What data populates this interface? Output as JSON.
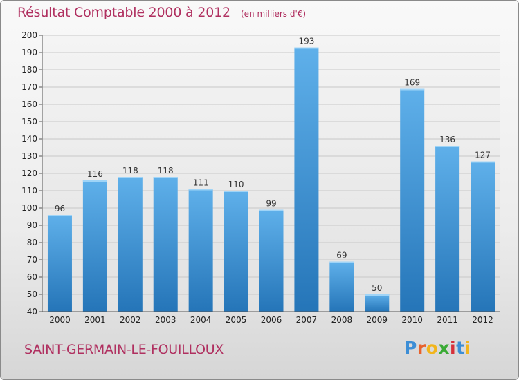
{
  "header": {
    "title": "Résultat Comptable 2000 à 2012",
    "subtitle": "(en milliers d'€)"
  },
  "footer": {
    "place_name": "SAINT-GERMAIN-LE-FOUILLOUX",
    "brand": {
      "text": "Proxiti",
      "letters": [
        "P",
        "r",
        "o",
        "x",
        "i",
        "t",
        "i"
      ],
      "letter_colors": [
        "#3c8ed6",
        "#e8622c",
        "#f2b51c",
        "#3aaa35",
        "#d6303a",
        "#3c8ed6",
        "#f2b51c"
      ]
    }
  },
  "colors": {
    "title": "#b03060",
    "bar_top": "#5fb0ea",
    "bar_bottom": "#2575b8",
    "grid": "#c8c8c8",
    "axis": "#555555"
  },
  "chart_data": {
    "type": "bar",
    "title": "Résultat Comptable 2000 à 2012",
    "subtitle": "(en milliers d'€)",
    "categories": [
      "2000",
      "2001",
      "2002",
      "2003",
      "2004",
      "2005",
      "2006",
      "2007",
      "2008",
      "2009",
      "2010",
      "2011",
      "2012"
    ],
    "values": [
      96,
      116,
      118,
      118,
      111,
      110,
      99,
      193,
      69,
      50,
      169,
      136,
      127
    ],
    "xlabel": "",
    "ylabel": "",
    "ylim": [
      40,
      200
    ],
    "ytick_step": 10,
    "grid": true,
    "legend": "none"
  }
}
